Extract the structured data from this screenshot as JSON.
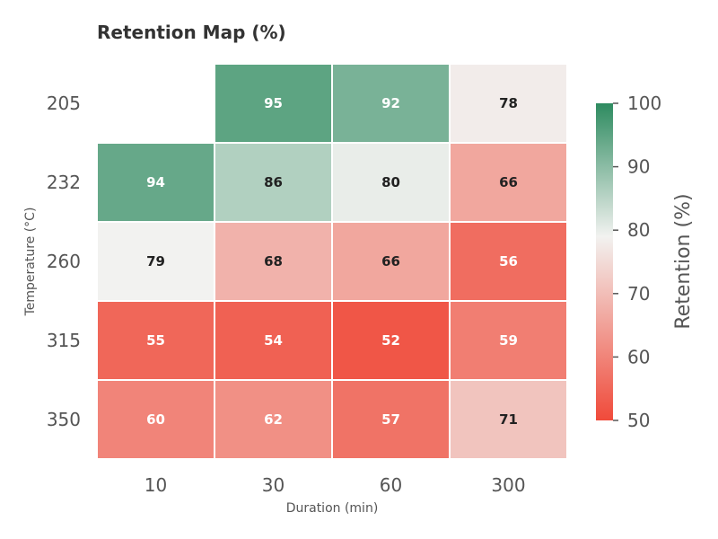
{
  "chart_data": {
    "type": "heatmap",
    "title": "Retention Map (%)",
    "xlabel": "Duration (min)",
    "ylabel": "Temperature (°C)",
    "x_categories": [
      "10",
      "30",
      "60",
      "300"
    ],
    "y_categories": [
      "205",
      "232",
      "260",
      "315",
      "350"
    ],
    "values": [
      [
        null,
        95,
        92,
        78
      ],
      [
        94,
        86,
        80,
        66
      ],
      [
        79,
        68,
        66,
        56
      ],
      [
        55,
        54,
        52,
        59
      ],
      [
        60,
        62,
        57,
        71
      ]
    ],
    "colorbar": {
      "label": "Retention (%)",
      "range": [
        50,
        100
      ],
      "ticks": [
        "50",
        "60",
        "70",
        "80",
        "90",
        "100"
      ],
      "colors": {
        "low": "#f04a3a",
        "mid": "#f2f2f0",
        "high": "#2e8b60"
      }
    }
  }
}
